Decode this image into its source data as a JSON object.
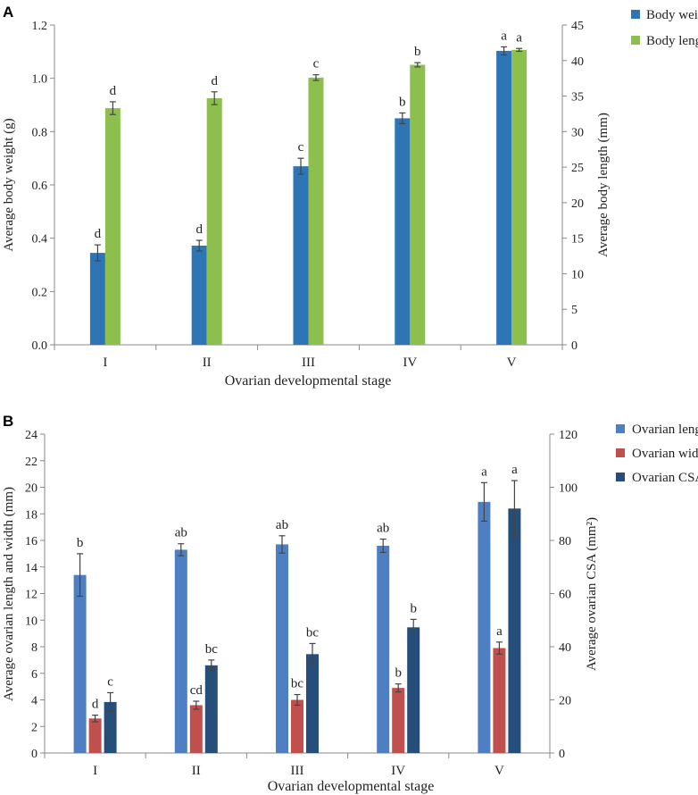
{
  "chart_data": [
    {
      "panel_label": "A",
      "type": "bar",
      "xlabel": "Ovarian developmental stage",
      "ylabel": "Average body weight (g)",
      "y2label": "Average body length (mm)",
      "categories": [
        "I",
        "II",
        "III",
        "IV",
        "V"
      ],
      "ylim": [
        0,
        1.2
      ],
      "yticks": [
        "0.0",
        "0.2",
        "0.4",
        "0.6",
        "0.8",
        "1.0",
        "1.2"
      ],
      "y2lim": [
        0,
        45
      ],
      "y2ticks": [
        "0",
        "5",
        "10",
        "15",
        "20",
        "25",
        "30",
        "35",
        "40",
        "45"
      ],
      "legend_position": "top-right",
      "series": [
        {
          "name": "Body weight",
          "axis": "left",
          "color": "#2e75b6",
          "values": [
            0.345,
            0.372,
            0.67,
            0.85,
            1.103
          ],
          "errors": [
            0.03,
            0.02,
            0.03,
            0.02,
            0.015
          ],
          "letters": [
            "d",
            "d",
            "c",
            "b",
            "a"
          ]
        },
        {
          "name": "Body length",
          "axis": "right",
          "color": "#8dbf4f",
          "values": [
            33.3,
            34.7,
            37.6,
            39.4,
            41.5
          ],
          "errors": [
            0.9,
            0.9,
            0.4,
            0.3,
            0.2
          ],
          "letters": [
            "d",
            "d",
            "c",
            "b",
            "a"
          ]
        }
      ]
    },
    {
      "panel_label": "B",
      "type": "bar",
      "xlabel": "Ovarian developmental stage",
      "ylabel": "Average ovarian length and width (mm)",
      "y2label": "Average ovarian CSA (mm²)",
      "categories": [
        "I",
        "II",
        "III",
        "IV",
        "V"
      ],
      "ylim": [
        0,
        24
      ],
      "yticks": [
        "0",
        "2",
        "4",
        "6",
        "8",
        "10",
        "12",
        "14",
        "16",
        "18",
        "20",
        "22",
        "24"
      ],
      "y2lim": [
        0,
        120
      ],
      "y2ticks": [
        "0",
        "20",
        "40",
        "60",
        "80",
        "100",
        "120"
      ],
      "legend_position": "top-right",
      "series": [
        {
          "name": "Ovarian length",
          "axis": "left",
          "color": "#4f7fc3",
          "values": [
            13.4,
            15.3,
            15.7,
            15.6,
            18.9
          ],
          "errors": [
            1.6,
            0.45,
            0.65,
            0.5,
            1.45
          ],
          "letters": [
            "b",
            "ab",
            "ab",
            "ab",
            "a"
          ]
        },
        {
          "name": "Ovarian width",
          "axis": "left",
          "color": "#c0504d",
          "values": [
            2.6,
            3.6,
            4.0,
            4.9,
            7.9
          ],
          "errors": [
            0.25,
            0.3,
            0.4,
            0.3,
            0.45
          ],
          "letters": [
            "d",
            "cd",
            "bc",
            "b",
            "a"
          ]
        },
        {
          "name": "Ovarian CSA",
          "axis": "right",
          "color": "#254e7b",
          "values": [
            19.2,
            33.0,
            37.2,
            47.3,
            92.0
          ],
          "errors": [
            3.5,
            2.0,
            4.0,
            3.0,
            10.5
          ],
          "letters": [
            "c",
            "bc",
            "bc",
            "b",
            "a"
          ]
        }
      ]
    }
  ]
}
